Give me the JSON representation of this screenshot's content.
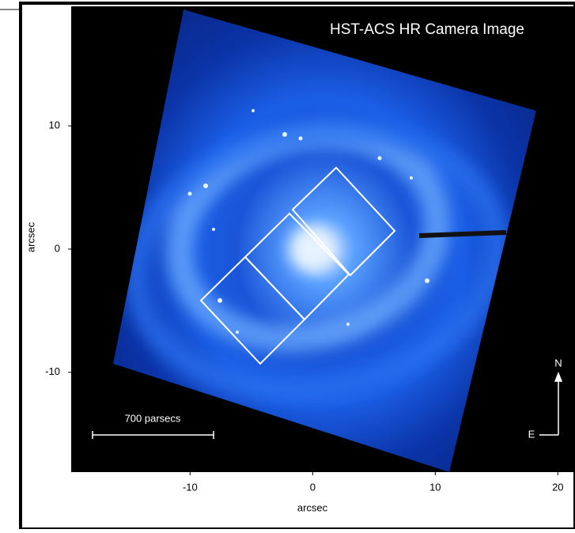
{
  "chart_data": {
    "type": "image",
    "title": "HST-ACS HR Camera Image",
    "xlabel": "arcsec",
    "ylabel": "arcsec",
    "xlim": [
      -19.7,
      21.4
    ],
    "ylim": [
      -18.1,
      19.7
    ],
    "xticks": [
      -10,
      0,
      10,
      20
    ],
    "yticks": [
      -10,
      0,
      10
    ],
    "scale_bar_label": "700 parsecs",
    "compass_north": "N",
    "compass_east": "E"
  }
}
